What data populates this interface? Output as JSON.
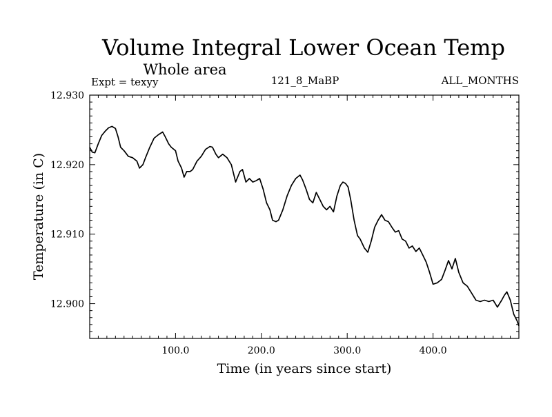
{
  "header": {
    "title": "Volume Integral Lower Ocean Temp",
    "subtitle": "Whole area",
    "expt": "Expt = texyy",
    "run": "121_8_MaBP",
    "months": "ALL_MONTHS"
  },
  "chart_data": {
    "type": "line",
    "title": "Volume Integral Lower Ocean Temp",
    "subtitle": "Whole area",
    "xlabel": "Time (in years since start)",
    "ylabel": "Temperature (in C)",
    "xlim": [
      0,
      500
    ],
    "ylim": [
      12.895,
      12.93
    ],
    "x_ticks": [
      100,
      200,
      300,
      400
    ],
    "x_tick_labels": [
      "100.0",
      "200.0",
      "300.0",
      "400.0"
    ],
    "y_ticks": [
      12.9,
      12.91,
      12.92,
      12.93
    ],
    "y_tick_labels": [
      "12.900",
      "12.910",
      "12.920",
      "12.930"
    ],
    "grid": false,
    "series": [
      {
        "x": [
          0,
          3,
          6,
          10,
          14,
          18,
          22,
          26,
          30,
          33,
          36,
          40,
          45,
          50,
          55,
          58,
          62,
          65,
          70,
          75,
          80,
          85,
          88,
          92,
          95,
          100,
          103,
          107,
          110,
          113,
          117,
          120,
          125,
          130,
          135,
          140,
          143,
          147,
          150,
          155,
          160,
          165,
          170,
          175,
          178,
          182,
          186,
          190,
          194,
          198,
          202,
          206,
          210,
          213,
          217,
          220,
          225,
          230,
          235,
          240,
          245,
          248,
          252,
          256,
          260,
          264,
          268,
          272,
          276,
          280,
          284,
          288,
          292,
          295,
          298,
          301,
          304,
          308,
          312,
          315,
          320,
          324,
          328,
          332,
          336,
          340,
          344,
          348,
          352,
          356,
          360,
          364,
          368,
          372,
          376,
          380,
          384,
          388,
          392,
          396,
          400,
          405,
          410,
          414,
          418,
          422,
          426,
          430,
          435,
          440,
          445,
          450,
          455,
          460,
          465,
          470,
          475,
          480,
          483,
          486,
          490,
          494,
          498,
          500
        ],
        "values": [
          12.9225,
          12.9218,
          12.9217,
          12.923,
          12.9242,
          12.9248,
          12.9253,
          12.9255,
          12.9252,
          12.924,
          12.9225,
          12.922,
          12.9212,
          12.921,
          12.9205,
          12.9195,
          12.92,
          12.921,
          12.9225,
          12.9238,
          12.9243,
          12.9247,
          12.924,
          12.923,
          12.9225,
          12.922,
          12.9205,
          12.9195,
          12.9182,
          12.919,
          12.919,
          12.9193,
          12.9205,
          12.9212,
          12.9222,
          12.9226,
          12.9225,
          12.9215,
          12.921,
          12.9215,
          12.921,
          12.92,
          12.9175,
          12.919,
          12.9193,
          12.9175,
          12.918,
          12.9175,
          12.9177,
          12.918,
          12.9165,
          12.9145,
          12.9135,
          12.912,
          12.9118,
          12.912,
          12.9135,
          12.9155,
          12.917,
          12.918,
          12.9185,
          12.9178,
          12.9165,
          12.915,
          12.9145,
          12.916,
          12.915,
          12.914,
          12.9135,
          12.914,
          12.9132,
          12.9155,
          12.917,
          12.9175,
          12.9173,
          12.9168,
          12.915,
          12.912,
          12.9098,
          12.9093,
          12.908,
          12.9074,
          12.909,
          12.911,
          12.912,
          12.9128,
          12.912,
          12.9118,
          12.911,
          12.9103,
          12.9105,
          12.9093,
          12.909,
          12.908,
          12.9083,
          12.9075,
          12.908,
          12.907,
          12.906,
          12.9045,
          12.9028,
          12.903,
          12.9035,
          12.9048,
          12.9062,
          12.905,
          12.9065,
          12.9045,
          12.903,
          12.9025,
          12.9015,
          12.9005,
          12.9003,
          12.9005,
          12.9003,
          12.9005,
          12.8995,
          12.9005,
          12.9012,
          12.9017,
          12.9005,
          12.8985,
          12.8975,
          12.8968
        ]
      }
    ]
  }
}
